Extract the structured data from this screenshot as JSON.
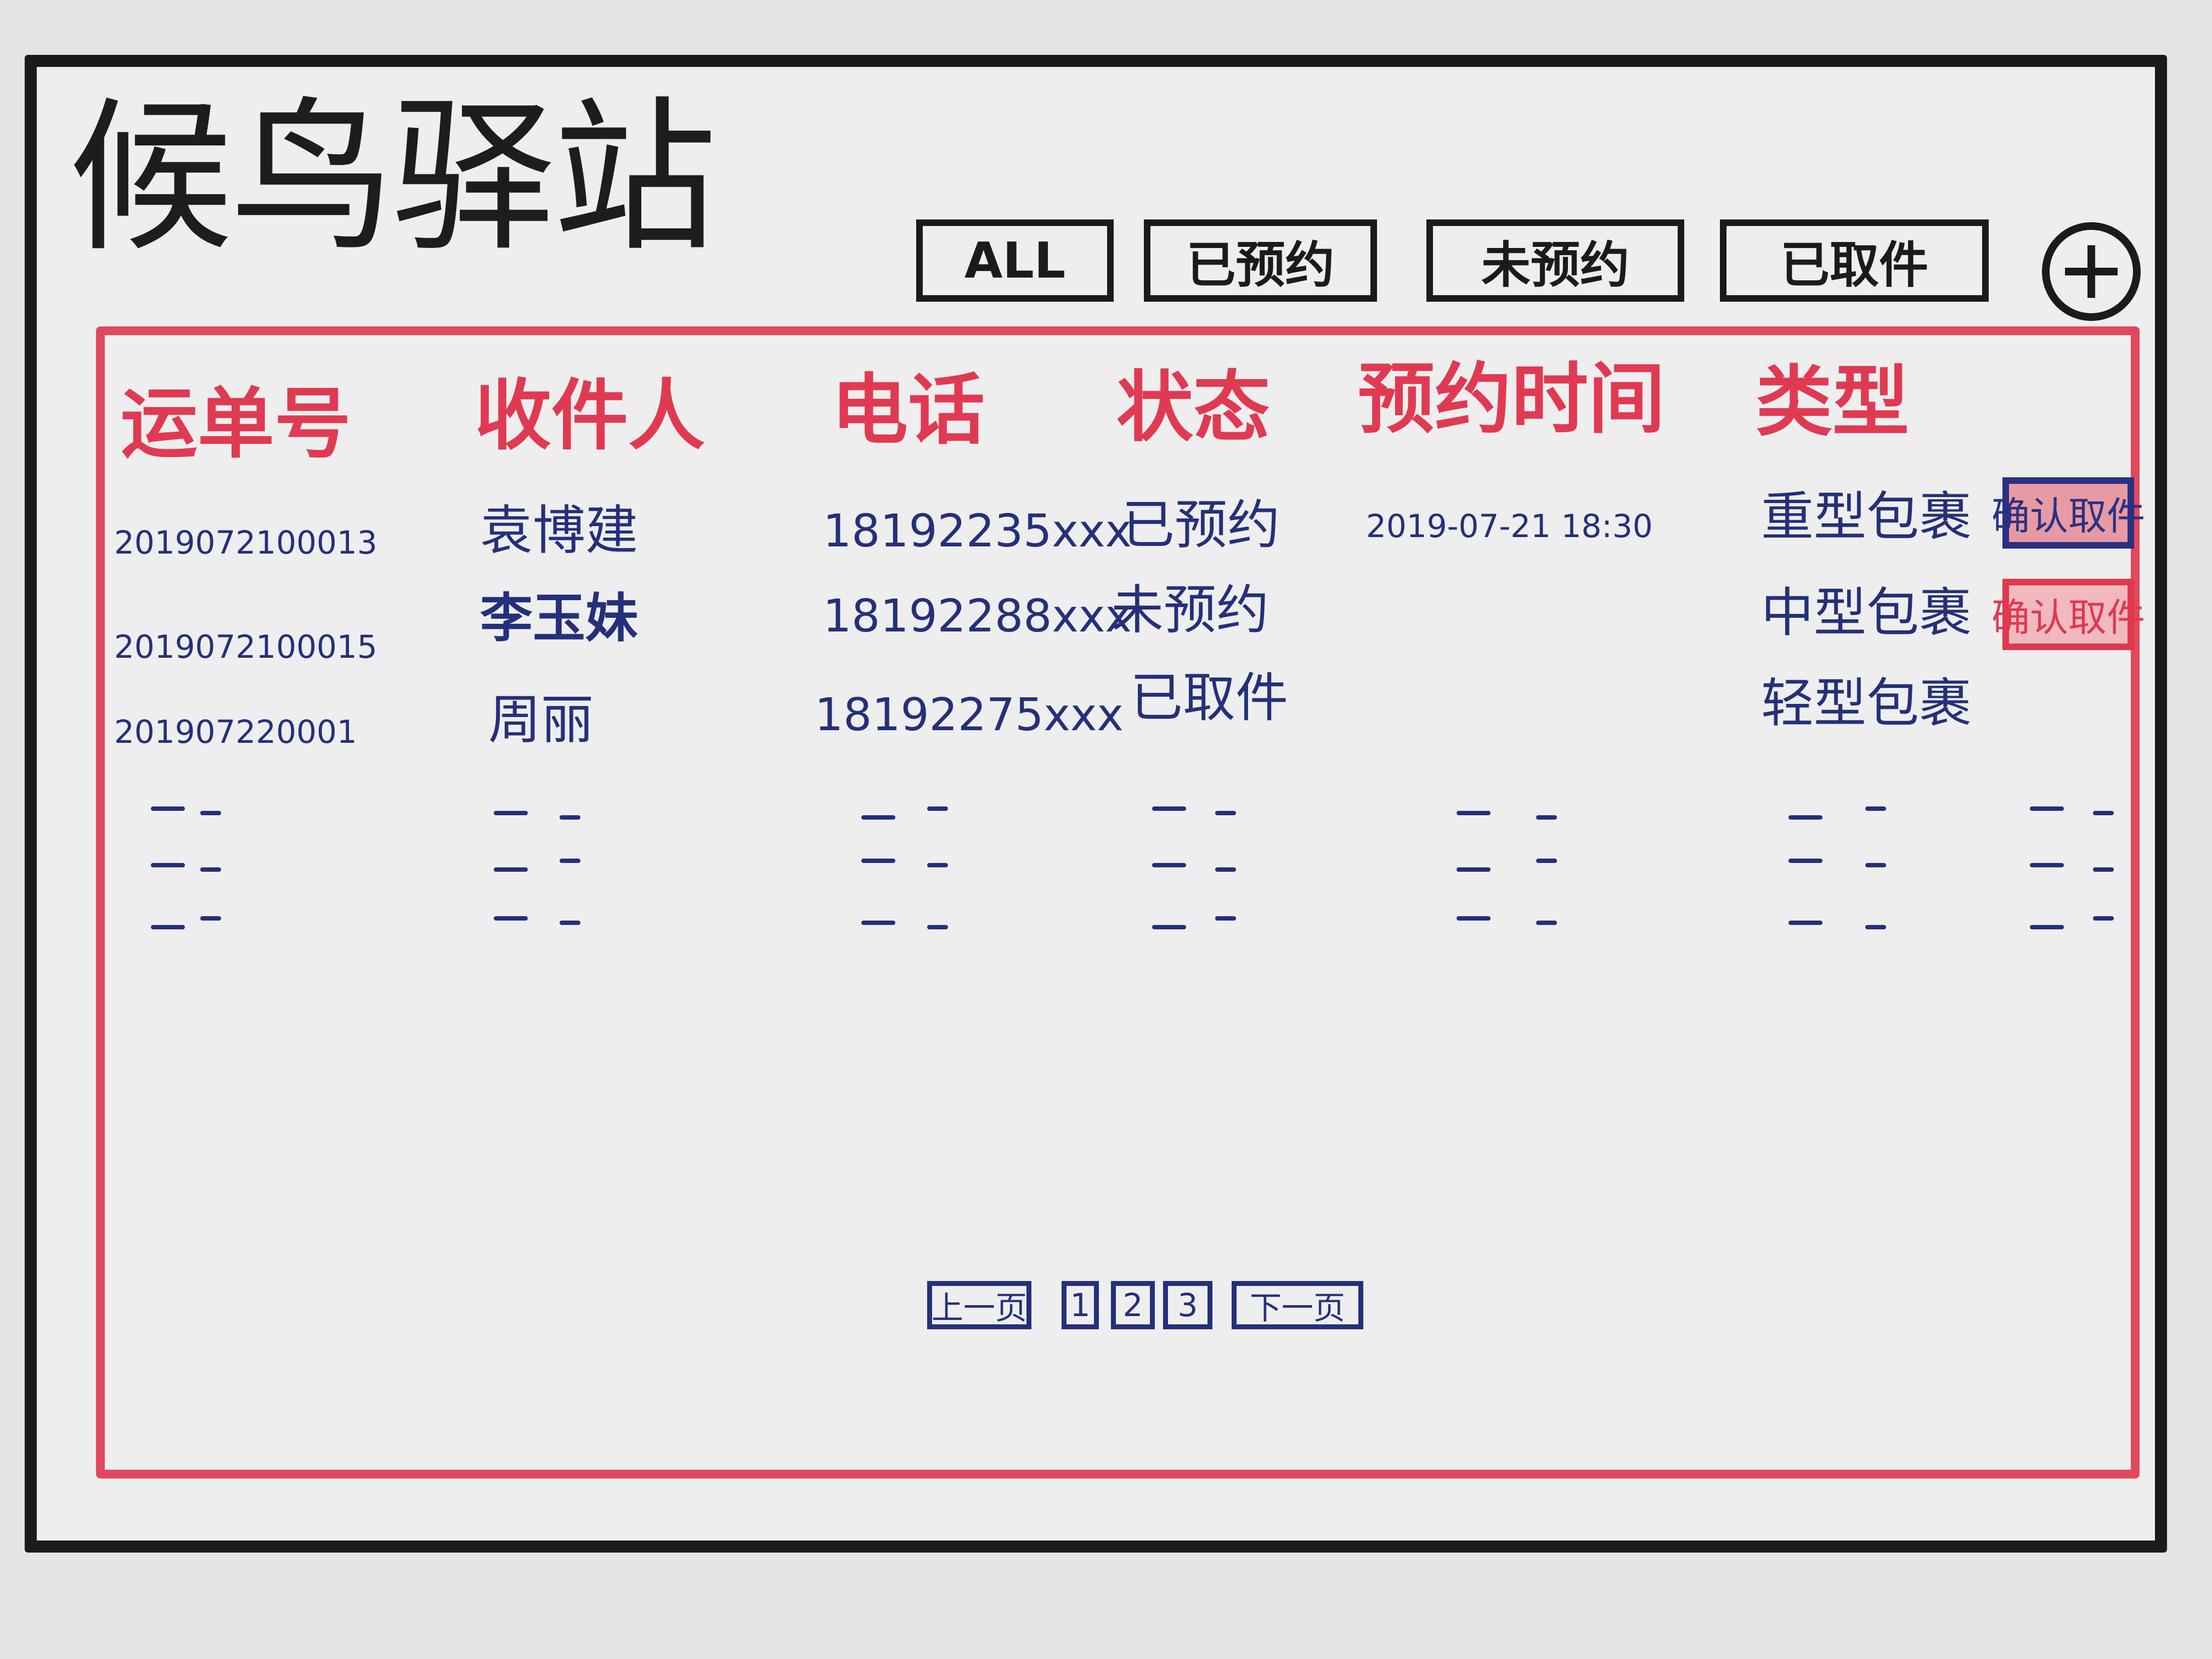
{
  "app": {
    "title": "候鸟驿站"
  },
  "filters": {
    "all": "ALL",
    "reserved": "已预约",
    "not_reserved": "未预约",
    "picked_up": "已取件"
  },
  "table": {
    "headers": {
      "tracking_no": "运单号",
      "recipient": "收件人",
      "phone": "电话",
      "status": "状态",
      "reserve_time": "预约时间",
      "type": "类型"
    },
    "rows": [
      {
        "tracking_no": "2019072100013",
        "recipient": "袁博建",
        "phone": "18192235xxx",
        "status": "已预约",
        "reserve_time": "2019-07-21 18:30",
        "type": "重型包裹",
        "action": "确认取件"
      },
      {
        "tracking_no": "2019072100015",
        "recipient": "李玉妹",
        "phone": "18192288xxx",
        "status": "未预约",
        "reserve_time": "",
        "type": "中型包裹",
        "action": "确认取件"
      },
      {
        "tracking_no": "201907220001",
        "recipient": "周丽",
        "phone": "18192275xxx",
        "status": "已取件",
        "reserve_time": "",
        "type": "轻型包裹",
        "action": ""
      }
    ]
  },
  "pagination": {
    "prev": "上一页",
    "pages": [
      "1",
      "2",
      "3"
    ],
    "next": "下一页"
  },
  "colors": {
    "ink_black": "#1b1b1b",
    "ink_red": "#e03a52",
    "ink_blue": "#24307a",
    "paper": "#eeeeef"
  }
}
